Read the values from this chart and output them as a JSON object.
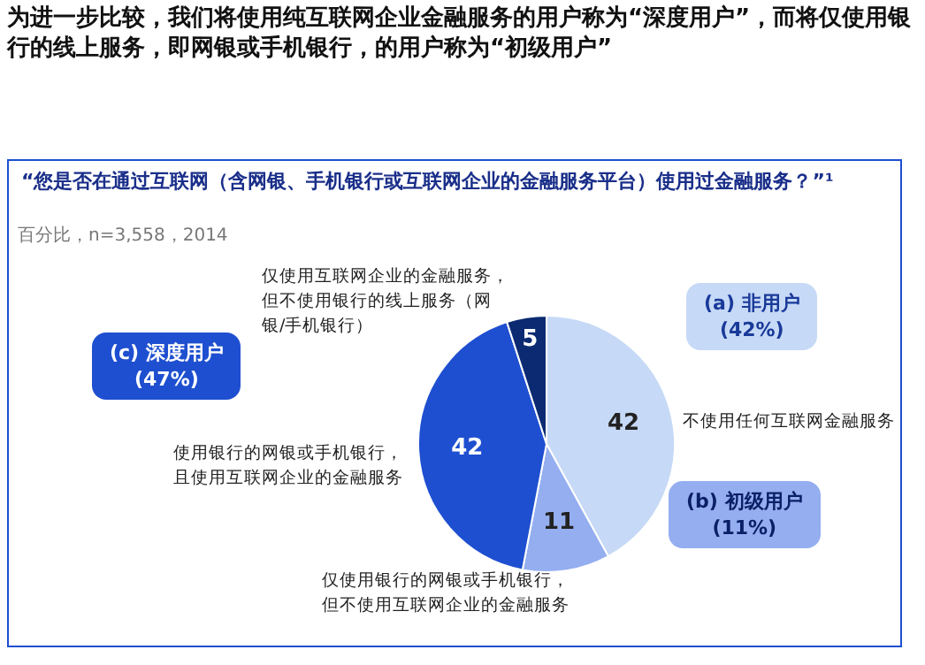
{
  "chart_data": {
    "type": "pie",
    "title": "为进一步比较，我们将使用纯互联网企业金融服务的用户称为“深度用户”，而将仅使用银行的线上服务，即网银或手机银行，的用户称为“初级用户”",
    "subtitle": "“您是否在通过互联网（含网银、手机银行或互联网企业的金融服务平台）使用过金融服务？”¹",
    "annotations": [
      "百分比，n=3,558，2014",
      "(a) 非用户\n(42%)",
      "(b) 初级用户\n(11%)",
      "(c) 深度用户\n(47%)"
    ],
    "categories": [
      "不使用任何互联网金融服务",
      "仅使用银行的网银或手机银行，但不使用互联网企业的金融服务",
      "使用银行的网银或手机银行，且使用互联网企业的金融服务",
      "仅使用互联网企业的金融服务，但不使用银行的线上服务（网银/手机银行）"
    ],
    "values": [
      42,
      11,
      42,
      5
    ],
    "colors": [
      "#c6d9f6",
      "#94aef0",
      "#1e4fd0",
      "#0b2a72"
    ],
    "data_labels": true,
    "legend": false
  }
}
